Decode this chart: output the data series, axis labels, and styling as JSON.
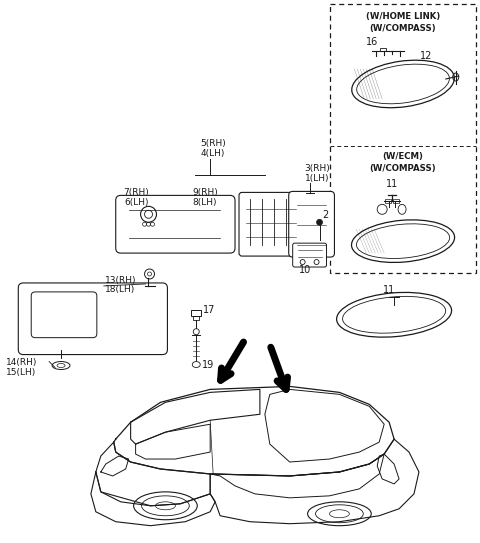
{
  "bg_color": "#ffffff",
  "line_color": "#1a1a1a",
  "fig_width": 4.8,
  "fig_height": 5.43,
  "dpi": 100,
  "labels": {
    "box1_l1": "(W/HOME LINK)",
    "box1_l2": "(W/COMPASS)",
    "box1_n16": "16",
    "box1_n12": "12",
    "box2_l1": "(W/ECM)",
    "box2_l2": "(W/COMPASS)",
    "box2_n11": "11",
    "lbl_5rh": "5(RH)",
    "lbl_4lh": "4(LH)",
    "lbl_9rh": "9(RH)",
    "lbl_8lh": "8(LH)",
    "lbl_7rh": "7(RH)",
    "lbl_6lh": "6(LH)",
    "lbl_3rh": "3(RH)",
    "lbl_1lh": "1(LH)",
    "lbl_2": "2",
    "lbl_10": "10",
    "lbl_13rh": "13(RH)",
    "lbl_18lh": "18(LH)",
    "lbl_14rh": "14(RH)",
    "lbl_15lh": "15(LH)",
    "lbl_17": "17",
    "lbl_19": "19",
    "lbl_11": "11"
  }
}
